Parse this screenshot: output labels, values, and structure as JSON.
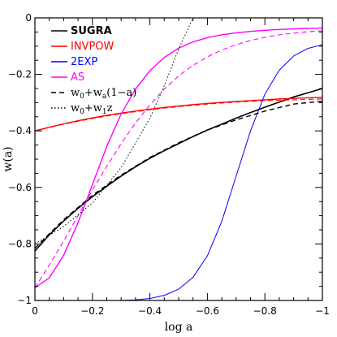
{
  "chart_data": {
    "type": "line",
    "xlabel": "log a",
    "ylabel": "w(a)",
    "xlim": [
      0,
      -1
    ],
    "ylim": [
      -1,
      0
    ],
    "x_ticks": [
      {
        "value": 0,
        "label": "0"
      },
      {
        "value": -0.2,
        "label": "−0.2"
      },
      {
        "value": -0.4,
        "label": "−0.4"
      },
      {
        "value": -0.6,
        "label": "−0.6"
      },
      {
        "value": -0.8,
        "label": "−0.8"
      },
      {
        "value": -1,
        "label": "−1"
      }
    ],
    "y_ticks": [
      {
        "value": 0,
        "label": "0"
      },
      {
        "value": -0.2,
        "label": "−0.2"
      },
      {
        "value": -0.4,
        "label": "−0.4"
      },
      {
        "value": -0.6,
        "label": "−0.6"
      },
      {
        "value": -0.8,
        "label": "−0.8"
      },
      {
        "value": -1,
        "label": "−1"
      }
    ],
    "grid": false,
    "legend_position": "top-left",
    "legend": [
      {
        "text": "SUGRA",
        "color": "#000000",
        "style": "solid"
      },
      {
        "text": "INVPOW",
        "color": "#ff0000",
        "style": "solid"
      },
      {
        "text": "2EXP",
        "color": "#0000ff",
        "style": "solid"
      },
      {
        "text": "AS",
        "color": "#ff00ff",
        "style": "solid"
      },
      {
        "text": "w0+wa(1−a)",
        "parts": {
          "w": "w",
          "sub0": "0",
          "plus": "+w",
          "subA": "a",
          "rest": "(1−a)"
        },
        "color": "#000000",
        "style": "dashed"
      },
      {
        "text": "w0+w1z",
        "parts": {
          "w": "w",
          "sub0": "0",
          "plus": "+w",
          "sub1": "1",
          "rest": "z"
        },
        "color": "#000000",
        "style": "dotted"
      }
    ],
    "series": [
      {
        "name": "SUGRA",
        "color": "#000000",
        "style": "solid",
        "width": 1.6,
        "x": [
          0,
          -0.05,
          -0.1,
          -0.15,
          -0.2,
          -0.25,
          -0.3,
          -0.35,
          -0.4,
          -0.45,
          -0.5,
          -0.55,
          -0.6,
          -0.65,
          -0.7,
          -0.75,
          -0.8,
          -0.85,
          -0.9,
          -0.95,
          -1.0
        ],
        "y": [
          -0.825,
          -0.768,
          -0.719,
          -0.674,
          -0.633,
          -0.596,
          -0.56,
          -0.527,
          -0.497,
          -0.47,
          -0.445,
          -0.42,
          -0.397,
          -0.376,
          -0.355,
          -0.335,
          -0.316,
          -0.298,
          -0.28,
          -0.265,
          -0.25
        ]
      },
      {
        "name": "INVPOW",
        "color": "#ff0000",
        "style": "solid",
        "width": 1.4,
        "x": [
          0,
          -0.05,
          -0.1,
          -0.15,
          -0.2,
          -0.25,
          -0.3,
          -0.35,
          -0.4,
          -0.45,
          -0.5,
          -0.55,
          -0.6,
          -0.65,
          -0.7,
          -0.75,
          -0.8,
          -0.85,
          -0.9,
          -0.95,
          -1.0
        ],
        "y": [
          -0.4,
          -0.387,
          -0.375,
          -0.364,
          -0.354,
          -0.345,
          -0.337,
          -0.33,
          -0.323,
          -0.317,
          -0.312,
          -0.307,
          -0.303,
          -0.299,
          -0.296,
          -0.293,
          -0.29,
          -0.287,
          -0.285,
          -0.283,
          -0.281
        ]
      },
      {
        "name": "INVPOW fit",
        "color": "#ff0000",
        "style": "dashed",
        "width": 1.1,
        "x": [
          0,
          -0.1,
          -0.2,
          -0.3,
          -0.4,
          -0.5,
          -0.6,
          -0.7,
          -0.8,
          -0.9,
          -1.0
        ],
        "y": [
          -0.4,
          -0.376,
          -0.356,
          -0.339,
          -0.325,
          -0.314,
          -0.305,
          -0.298,
          -0.293,
          -0.29,
          -0.287
        ]
      },
      {
        "name": "2EXP",
        "color": "#0000ff",
        "style": "solid",
        "width": 1.0,
        "x": [
          0,
          -0.1,
          -0.2,
          -0.3,
          -0.35,
          -0.4,
          -0.45,
          -0.5,
          -0.55,
          -0.6,
          -0.65,
          -0.7,
          -0.75,
          -0.8,
          -0.85,
          -0.9,
          -0.95,
          -1.0
        ],
        "y": [
          -1.0,
          -1.0,
          -1.0,
          -1.0,
          -0.998,
          -0.993,
          -0.982,
          -0.96,
          -0.918,
          -0.842,
          -0.72,
          -0.56,
          -0.4,
          -0.27,
          -0.185,
          -0.135,
          -0.108,
          -0.095
        ]
      },
      {
        "name": "AS",
        "color": "#ff00ff",
        "style": "solid",
        "width": 1.4,
        "x": [
          0,
          -0.05,
          -0.1,
          -0.15,
          -0.2,
          -0.25,
          -0.3,
          -0.35,
          -0.4,
          -0.45,
          -0.5,
          -0.55,
          -0.6,
          -0.65,
          -0.7,
          -0.75,
          -0.8,
          -0.85,
          -0.9,
          -0.95,
          -1.0
        ],
        "y": [
          -0.955,
          -0.92,
          -0.84,
          -0.725,
          -0.59,
          -0.455,
          -0.34,
          -0.252,
          -0.187,
          -0.14,
          -0.107,
          -0.085,
          -0.07,
          -0.06,
          -0.053,
          -0.048,
          -0.044,
          -0.041,
          -0.039,
          -0.037,
          -0.036
        ]
      },
      {
        "name": "AS fit",
        "color": "#ff00ff",
        "style": "dashed",
        "width": 1.1,
        "x": [
          0,
          -0.05,
          -0.1,
          -0.15,
          -0.2,
          -0.25,
          -0.3,
          -0.35,
          -0.4,
          -0.45,
          -0.5,
          -0.55,
          -0.6,
          -0.65,
          -0.7,
          -0.75,
          -0.8,
          -0.85,
          -0.9,
          -0.95,
          -1.0
        ],
        "y": [
          -0.955,
          -0.875,
          -0.79,
          -0.7,
          -0.61,
          -0.525,
          -0.445,
          -0.372,
          -0.308,
          -0.252,
          -0.205,
          -0.168,
          -0.138,
          -0.114,
          -0.095,
          -0.08,
          -0.069,
          -0.06,
          -0.054,
          -0.049,
          -0.046
        ]
      },
      {
        "name": "SUGRA fit",
        "color": "#000000",
        "style": "dashed",
        "width": 1.4,
        "x": [
          0,
          -0.1,
          -0.2,
          -0.3,
          -0.4,
          -0.5,
          -0.6,
          -0.7,
          -0.8,
          -0.9,
          -1.0
        ],
        "y": [
          -0.815,
          -0.714,
          -0.628,
          -0.556,
          -0.494,
          -0.442,
          -0.397,
          -0.361,
          -0.33,
          -0.305,
          -0.295
        ]
      },
      {
        "name": "SUGRA linear",
        "color": "#000000",
        "style": "dotted",
        "width": 1.0,
        "x": [
          0,
          -0.1,
          -0.2,
          -0.3,
          -0.4,
          -0.45,
          -0.5,
          -0.55,
          -0.6
        ],
        "y": [
          -0.8,
          -0.738,
          -0.655,
          -0.53,
          -0.355,
          -0.24,
          -0.11,
          0.0,
          0.0
        ]
      }
    ]
  }
}
